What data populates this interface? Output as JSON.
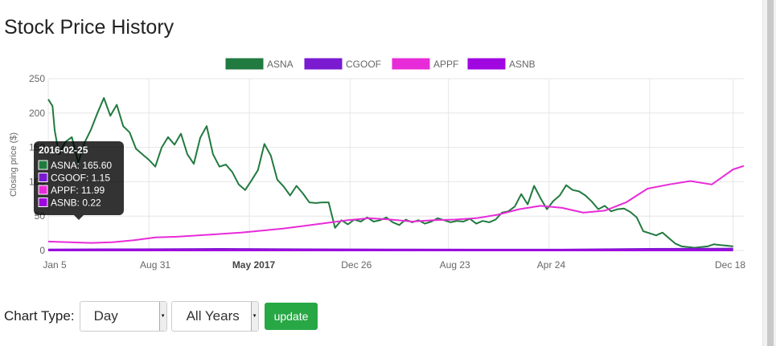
{
  "page": {
    "title": "Stock Price History"
  },
  "controls": {
    "chart_type_label": "Chart Type:",
    "chart_type_value": "Day",
    "years_value": "All Years",
    "update_label": "update",
    "update_color": "#28a745"
  },
  "tooltip": {
    "title": "2016-02-25",
    "lines": [
      "ASNA: 165.60",
      "CGOOF: 1.15",
      "APPF: 11.99",
      "ASNB: 0.22"
    ]
  },
  "chart_data": {
    "type": "line",
    "title": "",
    "xlabel": "",
    "ylabel": "Closing price ($)",
    "ylim": [
      0,
      250
    ],
    "yticks": [
      "0",
      "50",
      "100",
      "150",
      "200",
      "250"
    ],
    "xticks": [
      "Jan 5",
      "Aug 31",
      "May 2017",
      "Dec 26",
      "Aug 23",
      "Apr 24",
      "Dec 18"
    ],
    "grid": true,
    "legend_position": "top",
    "series": [
      {
        "name": "ASNA",
        "color": "#217a3f",
        "values": [
          [
            0,
            220
          ],
          [
            2,
            210
          ],
          [
            3,
            175
          ],
          [
            5,
            140
          ],
          [
            8,
            158
          ],
          [
            11,
            165
          ],
          [
            14,
            128
          ],
          [
            17,
            157
          ],
          [
            20,
            176
          ],
          [
            23,
            200
          ],
          [
            26,
            222
          ],
          [
            29,
            196
          ],
          [
            32,
            212
          ],
          [
            35,
            181
          ],
          [
            38,
            172
          ],
          [
            41,
            148
          ],
          [
            44,
            140
          ],
          [
            47,
            132
          ],
          [
            50,
            122
          ],
          [
            53,
            150
          ],
          [
            56,
            165
          ],
          [
            59,
            154
          ],
          [
            62,
            170
          ],
          [
            65,
            140
          ],
          [
            68,
            126
          ],
          [
            71,
            164
          ],
          [
            74,
            181
          ],
          [
            77,
            140
          ],
          [
            80,
            122
          ],
          [
            83,
            125
          ],
          [
            86,
            114
          ],
          [
            89,
            96
          ],
          [
            92,
            88
          ],
          [
            95,
            102
          ],
          [
            98,
            117
          ],
          [
            101,
            155
          ],
          [
            104,
            138
          ],
          [
            107,
            103
          ],
          [
            110,
            93
          ],
          [
            113,
            80
          ],
          [
            116,
            94
          ],
          [
            119,
            83
          ],
          [
            122,
            70
          ],
          [
            125,
            69
          ],
          [
            128,
            70
          ],
          [
            131,
            70
          ],
          [
            134,
            33
          ],
          [
            137,
            44
          ],
          [
            140,
            38
          ],
          [
            143,
            45
          ],
          [
            146,
            42
          ],
          [
            149,
            48
          ],
          [
            152,
            42
          ],
          [
            155,
            44
          ],
          [
            158,
            48
          ],
          [
            161,
            41
          ],
          [
            164,
            37
          ],
          [
            167,
            45
          ],
          [
            170,
            41
          ],
          [
            173,
            44
          ],
          [
            176,
            39
          ],
          [
            179,
            42
          ],
          [
            182,
            47
          ],
          [
            185,
            44
          ],
          [
            188,
            41
          ],
          [
            191,
            43
          ],
          [
            194,
            42
          ],
          [
            197,
            46
          ],
          [
            200,
            39
          ],
          [
            203,
            43
          ],
          [
            206,
            41
          ],
          [
            209,
            45
          ],
          [
            212,
            55
          ],
          [
            215,
            57
          ],
          [
            218,
            64
          ],
          [
            221,
            82
          ],
          [
            224,
            67
          ],
          [
            227,
            94
          ],
          [
            230,
            76
          ],
          [
            233,
            60
          ],
          [
            236,
            72
          ],
          [
            239,
            80
          ],
          [
            242,
            95
          ],
          [
            245,
            88
          ],
          [
            248,
            86
          ],
          [
            251,
            80
          ],
          [
            254,
            71
          ],
          [
            257,
            60
          ],
          [
            260,
            65
          ],
          [
            263,
            57
          ],
          [
            266,
            60
          ],
          [
            269,
            61
          ],
          [
            272,
            56
          ],
          [
            275,
            48
          ],
          [
            278,
            28
          ],
          [
            281,
            25
          ],
          [
            284,
            22
          ],
          [
            287,
            26
          ],
          [
            290,
            18
          ],
          [
            293,
            10
          ],
          [
            296,
            6
          ],
          [
            299,
            5
          ],
          [
            302,
            4
          ],
          [
            305,
            5
          ],
          [
            308,
            6
          ],
          [
            311,
            9
          ],
          [
            314,
            8
          ],
          [
            317,
            7
          ],
          [
            320,
            6
          ]
        ]
      },
      {
        "name": "CGOOF",
        "color": "#7a1ad1",
        "values": [
          [
            0,
            1.2
          ],
          [
            40,
            1.5
          ],
          [
            80,
            2.0
          ],
          [
            120,
            1.4
          ],
          [
            160,
            1.2
          ],
          [
            200,
            1.0
          ],
          [
            240,
            1.1
          ],
          [
            280,
            2.0
          ],
          [
            320,
            2.5
          ]
        ]
      },
      {
        "name": "APPF",
        "color": "#e82bd9",
        "values": [
          [
            0,
            13
          ],
          [
            10,
            12
          ],
          [
            20,
            11
          ],
          [
            30,
            12
          ],
          [
            40,
            15
          ],
          [
            50,
            19
          ],
          [
            60,
            20
          ],
          [
            70,
            22
          ],
          [
            80,
            24
          ],
          [
            90,
            26
          ],
          [
            100,
            29
          ],
          [
            110,
            32
          ],
          [
            120,
            36
          ],
          [
            130,
            40
          ],
          [
            140,
            44
          ],
          [
            150,
            47
          ],
          [
            160,
            45
          ],
          [
            170,
            42
          ],
          [
            180,
            44
          ],
          [
            190,
            45
          ],
          [
            200,
            47
          ],
          [
            210,
            52
          ],
          [
            220,
            60
          ],
          [
            230,
            65
          ],
          [
            240,
            62
          ],
          [
            250,
            55
          ],
          [
            260,
            58
          ],
          [
            270,
            70
          ],
          [
            280,
            90
          ],
          [
            290,
            96
          ],
          [
            300,
            101
          ],
          [
            310,
            96
          ],
          [
            320,
            118
          ],
          [
            325,
            123
          ]
        ]
      },
      {
        "name": "ASNB",
        "color": "#a007e0",
        "values": [
          [
            0,
            0.22
          ],
          [
            80,
            0.3
          ],
          [
            160,
            0.25
          ],
          [
            240,
            0.35
          ],
          [
            320,
            0.3
          ]
        ]
      }
    ]
  }
}
